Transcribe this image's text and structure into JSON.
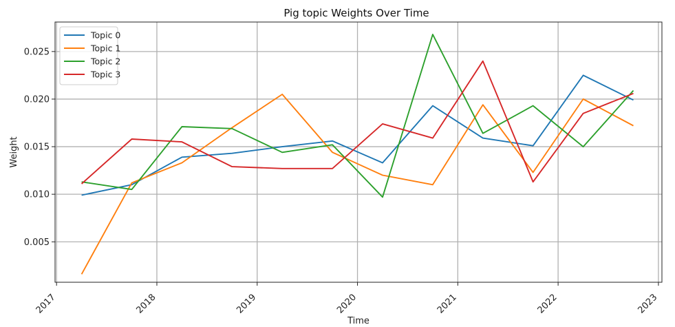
{
  "chart_data": {
    "type": "line",
    "title": "Pig topic Weights Over Time",
    "xlabel": "Time",
    "ylabel": "Weight",
    "x_tick_labels": [
      "2017",
      "2018",
      "2019",
      "2020",
      "2021",
      "2022",
      "2023"
    ],
    "y_tick_labels": [
      "0.005",
      "0.010",
      "0.015",
      "0.020",
      "0.025"
    ],
    "grid": true,
    "legend_position": "top-left",
    "x": [
      "2017-04",
      "2017-10",
      "2018-04",
      "2018-10",
      "2019-04",
      "2019-10",
      "2020-04",
      "2020-10",
      "2021-04",
      "2021-10",
      "2022-04",
      "2022-10"
    ],
    "series": [
      {
        "name": "Topic 0",
        "color": "#1f77b4",
        "values": [
          0.0099,
          0.011,
          0.0139,
          0.0143,
          0.015,
          0.0156,
          0.0133,
          0.0193,
          0.0159,
          0.0151,
          0.0225,
          0.0199
        ]
      },
      {
        "name": "Topic 1",
        "color": "#ff7f0e",
        "values": [
          0.0016,
          0.0112,
          0.0133,
          0.017,
          0.0205,
          0.0144,
          0.012,
          0.011,
          0.0194,
          0.0123,
          0.02,
          0.0172
        ]
      },
      {
        "name": "Topic 2",
        "color": "#2ca02c",
        "values": [
          0.0113,
          0.0105,
          0.0171,
          0.0169,
          0.0144,
          0.0152,
          0.0097,
          0.0268,
          0.0164,
          0.0193,
          0.015,
          0.0209
        ]
      },
      {
        "name": "Topic 3",
        "color": "#d62728",
        "values": [
          0.0111,
          0.0158,
          0.0155,
          0.0129,
          0.0127,
          0.0127,
          0.0174,
          0.0159,
          0.024,
          0.0113,
          0.0185,
          0.0206
        ]
      }
    ]
  }
}
